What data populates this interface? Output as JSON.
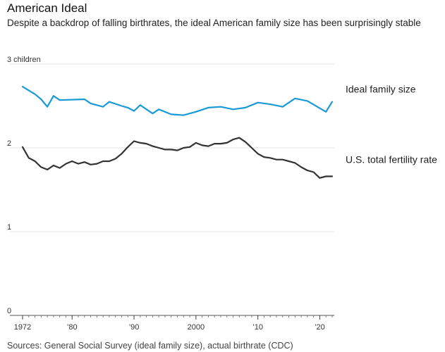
{
  "header": {
    "title": "American Ideal",
    "subtitle": "Despite a backdrop of falling birthrates, the ideal American family size has been surprisingly stable"
  },
  "footer": {
    "source": "Sources: General Social Survey (ideal family size), actual birthrate (CDC)"
  },
  "chart_data": {
    "type": "line",
    "title": "American Ideal",
    "subtitle": "Despite a backdrop of falling birthrates, the ideal American family size has been surprisingly stable",
    "ylim": [
      0,
      3
    ],
    "xlim": [
      1972,
      2022
    ],
    "y_ticks": [
      {
        "value": 3,
        "label": "3 children"
      },
      {
        "value": 2,
        "label": "2"
      },
      {
        "value": 1,
        "label": "1"
      },
      {
        "value": 0,
        "label": "0"
      }
    ],
    "x_ticks": [
      {
        "value": 1972,
        "label": "1972"
      },
      {
        "value": 1980,
        "label": "’80"
      },
      {
        "value": 1990,
        "label": "’90"
      },
      {
        "value": 2000,
        "label": "2000"
      },
      {
        "value": 2010,
        "label": "’10"
      },
      {
        "value": 2020,
        "label": "’20"
      }
    ],
    "grid": true,
    "series": [
      {
        "name": "Ideal family size",
        "color": "#1a9ad6",
        "x": [
          1972,
          1974,
          1975,
          1976,
          1977,
          1978,
          1982,
          1983,
          1985,
          1986,
          1988,
          1989,
          1990,
          1991,
          1993,
          1994,
          1996,
          1998,
          2000,
          2002,
          2004,
          2006,
          2008,
          2010,
          2012,
          2014,
          2016,
          2018,
          2021,
          2022
        ],
        "values": [
          2.73,
          2.64,
          2.58,
          2.49,
          2.62,
          2.57,
          2.58,
          2.53,
          2.49,
          2.55,
          2.5,
          2.48,
          2.44,
          2.51,
          2.41,
          2.46,
          2.4,
          2.39,
          2.43,
          2.48,
          2.49,
          2.46,
          2.48,
          2.54,
          2.52,
          2.49,
          2.59,
          2.56,
          2.43,
          2.55
        ]
      },
      {
        "name": "U.S. total fertility rate",
        "color": "#333333",
        "x": [
          1972,
          1973,
          1974,
          1975,
          1976,
          1977,
          1978,
          1979,
          1980,
          1981,
          1982,
          1983,
          1984,
          1985,
          1986,
          1987,
          1988,
          1989,
          1990,
          1991,
          1992,
          1993,
          1994,
          1995,
          1996,
          1997,
          1998,
          1999,
          2000,
          2001,
          2002,
          2003,
          2004,
          2005,
          2006,
          2007,
          2008,
          2009,
          2010,
          2011,
          2012,
          2013,
          2014,
          2015,
          2016,
          2017,
          2018,
          2019,
          2020,
          2021,
          2022
        ],
        "values": [
          2.01,
          1.88,
          1.84,
          1.77,
          1.74,
          1.79,
          1.76,
          1.81,
          1.84,
          1.81,
          1.83,
          1.8,
          1.81,
          1.84,
          1.84,
          1.87,
          1.93,
          2.01,
          2.08,
          2.06,
          2.05,
          2.02,
          2.0,
          1.98,
          1.98,
          1.97,
          2.0,
          2.01,
          2.06,
          2.03,
          2.02,
          2.05,
          2.05,
          2.06,
          2.1,
          2.12,
          2.07,
          2.0,
          1.93,
          1.89,
          1.88,
          1.86,
          1.86,
          1.84,
          1.82,
          1.77,
          1.73,
          1.71,
          1.64,
          1.66,
          1.66
        ]
      }
    ]
  }
}
